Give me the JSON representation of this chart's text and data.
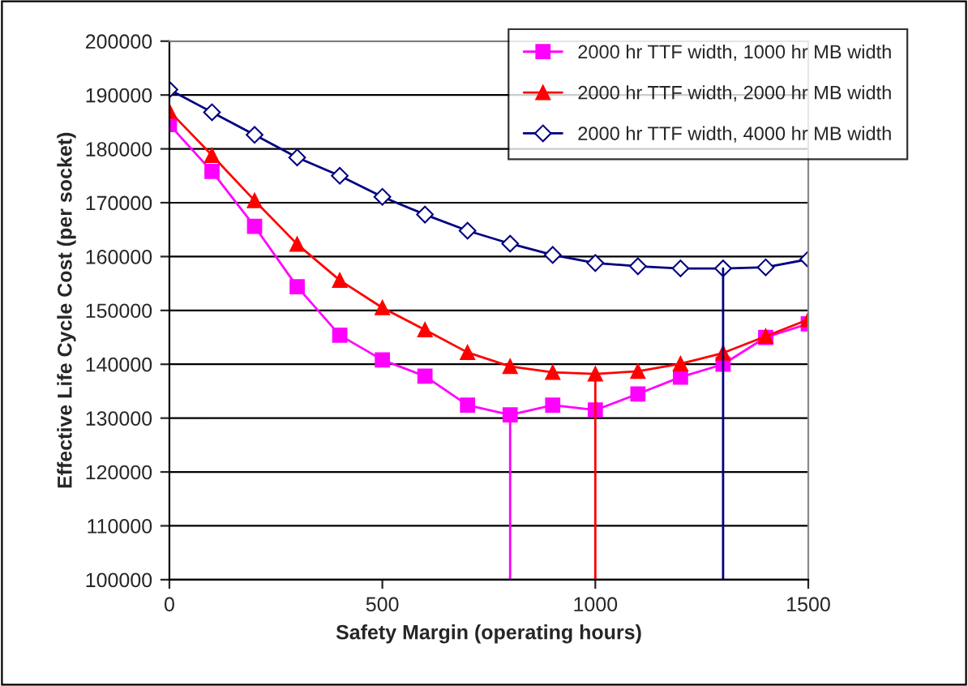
{
  "chart_data": {
    "type": "line",
    "xlabel": "Safety Margin (operating hours)",
    "ylabel": "Effective Life Cycle Cost (per socket)",
    "xlim": [
      0,
      1500
    ],
    "xticks": [
      0,
      500,
      1000,
      1500
    ],
    "ylim": [
      100000,
      200000
    ],
    "yticks": [
      100000,
      110000,
      120000,
      130000,
      140000,
      150000,
      160000,
      170000,
      180000,
      190000,
      200000
    ],
    "x": [
      0,
      100,
      200,
      300,
      400,
      500,
      600,
      700,
      800,
      900,
      1000,
      1100,
      1200,
      1300,
      1400,
      1500
    ],
    "grid": "y",
    "legend": "top right",
    "series": [
      {
        "name": "2000 hr TTF width, 1000 hr MB width",
        "color": "#ff00ff",
        "marker": "square",
        "values": [
          184500,
          175800,
          165600,
          154400,
          145400,
          140800,
          137800,
          132400,
          130600,
          132400,
          131500,
          134500,
          137600,
          140000,
          145000,
          147500
        ]
      },
      {
        "name": "2000 hr TTF width, 2000 hr MB width",
        "color": "#ff0000",
        "marker": "triangle",
        "values": [
          187000,
          178800,
          170400,
          162300,
          155600,
          150500,
          146400,
          142200,
          139600,
          138500,
          138200,
          138700,
          140100,
          142100,
          145200,
          148300
        ]
      },
      {
        "name": "2000 hr TTF width, 4000 hr MB width",
        "color": "#000080",
        "marker": "diamond",
        "values": [
          191000,
          186800,
          182600,
          178400,
          175000,
          171100,
          167800,
          164800,
          162400,
          160300,
          158800,
          158200,
          157800,
          157800,
          158000,
          159500
        ]
      },
      {
        "color": "#ff00ff",
        "marker": "none",
        "x": [
          800,
          800
        ],
        "values": [
          100000,
          130600
        ]
      },
      {
        "color": "#ff0000",
        "marker": "none",
        "x": [
          1000,
          1000
        ],
        "values": [
          100000,
          138200
        ]
      },
      {
        "color": "#000080",
        "marker": "none",
        "x": [
          1300,
          1300
        ],
        "values": [
          100000,
          157800
        ]
      }
    ]
  }
}
